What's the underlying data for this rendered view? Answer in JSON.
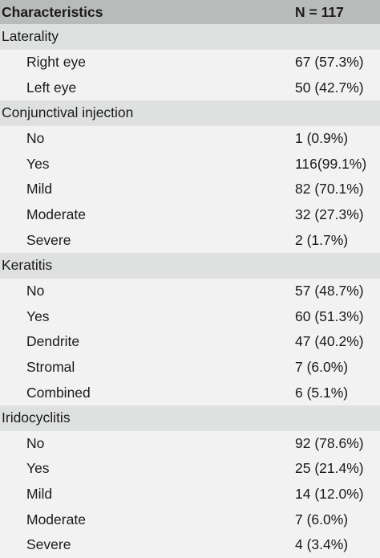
{
  "header": {
    "characteristics": "Characteristics",
    "n": "N = 117"
  },
  "groups": [
    {
      "label": "Laterality",
      "rows": [
        {
          "label": "Right eye",
          "value": "67 (57.3%)"
        },
        {
          "label": "Left eye",
          "value": "50 (42.7%)"
        }
      ]
    },
    {
      "label": "Conjunctival injection",
      "rows": [
        {
          "label": "No",
          "value": "1 (0.9%)"
        },
        {
          "label": "Yes",
          "value": "116(99.1%)"
        },
        {
          "label": "Mild",
          "value": "82 (70.1%)"
        },
        {
          "label": "Moderate",
          "value": "32 (27.3%)"
        },
        {
          "label": "Severe",
          "value": "2 (1.7%)"
        }
      ]
    },
    {
      "label": "Keratitis",
      "rows": [
        {
          "label": "No",
          "value": "57 (48.7%)"
        },
        {
          "label": "Yes",
          "value": "60 (51.3%)"
        },
        {
          "label": "Dendrite",
          "value": "47 (40.2%)"
        },
        {
          "label": "Stromal",
          "value": "7 (6.0%)"
        },
        {
          "label": "Combined",
          "value": "6 (5.1%)"
        }
      ]
    },
    {
      "label": "Iridocyclitis",
      "rows": [
        {
          "label": "No",
          "value": "92 (78.6%)"
        },
        {
          "label": "Yes",
          "value": "25 (21.4%)"
        },
        {
          "label": "Mild",
          "value": "14 (12.0%)"
        },
        {
          "label": "Moderate",
          "value": "7 (6.0%)"
        },
        {
          "label": "Severe",
          "value": "4 (3.4%)"
        }
      ]
    }
  ]
}
